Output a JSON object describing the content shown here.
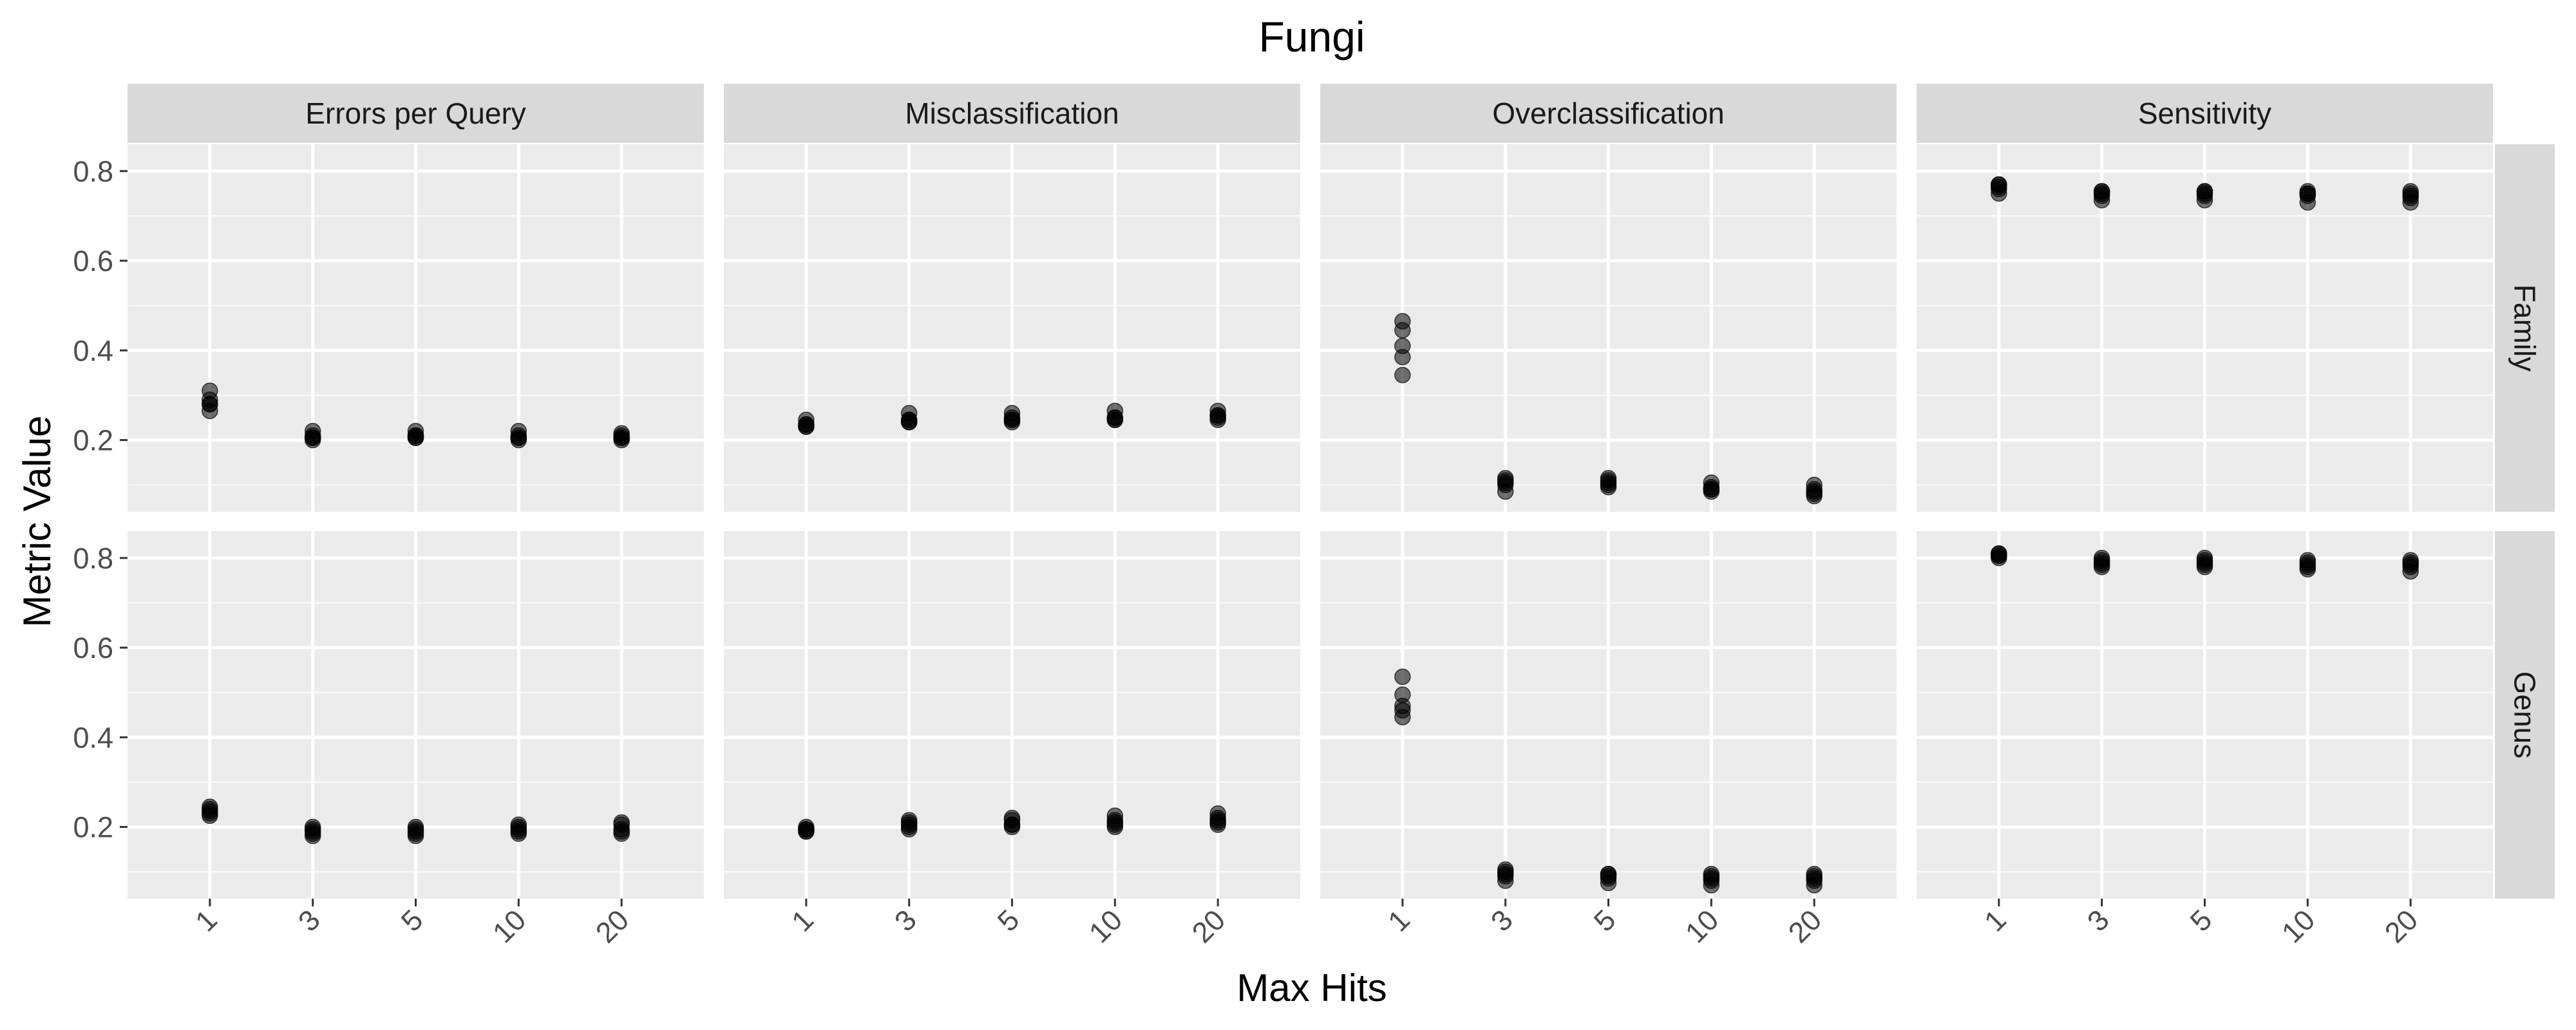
{
  "chart_data": {
    "type": "scatter",
    "title": "Fungi",
    "xlabel": "Max Hits",
    "ylabel": "Metric Value",
    "x_categories": [
      "1",
      "3",
      "5",
      "10",
      "20"
    ],
    "y_ticks": [
      "0.2",
      "0.4",
      "0.6",
      "0.8"
    ],
    "ylim": [
      0.04,
      0.86
    ],
    "facet_columns": [
      "Errors per Query",
      "Misclassification",
      "Overclassification",
      "Sensitivity"
    ],
    "facet_rows": [
      "Family",
      "Genus"
    ],
    "grid": true,
    "point_color": "#000000",
    "point_opacity": 0.55,
    "panel_background": "#ebebeb",
    "strip_background": "#d9d9d9",
    "panels": [
      {
        "column": "Errors per Query",
        "row": "Family",
        "points": [
          [
            0.31,
            0.29,
            0.28,
            0.265,
            0.28
          ],
          [
            0.22,
            0.205,
            0.2,
            0.21,
            0.205
          ],
          [
            0.22,
            0.205,
            0.21,
            0.205,
            0.21
          ],
          [
            0.22,
            0.205,
            0.2,
            0.21,
            0.205
          ],
          [
            0.215,
            0.205,
            0.2,
            0.21,
            0.205
          ]
        ]
      },
      {
        "column": "Misclassification",
        "row": "Family",
        "points": [
          [
            0.245,
            0.235,
            0.23,
            0.235,
            0.23
          ],
          [
            0.26,
            0.245,
            0.24,
            0.245,
            0.24
          ],
          [
            0.26,
            0.245,
            0.24,
            0.25,
            0.245
          ],
          [
            0.265,
            0.25,
            0.245,
            0.25,
            0.245
          ],
          [
            0.265,
            0.255,
            0.245,
            0.25,
            0.255
          ]
        ]
      },
      {
        "column": "Overclassification",
        "row": "Family",
        "points": [
          [
            0.465,
            0.445,
            0.41,
            0.385,
            0.345
          ],
          [
            0.115,
            0.1,
            0.085,
            0.11,
            0.105
          ],
          [
            0.115,
            0.1,
            0.095,
            0.11,
            0.105
          ],
          [
            0.105,
            0.09,
            0.085,
            0.095,
            0.09
          ],
          [
            0.1,
            0.085,
            0.075,
            0.09,
            0.08
          ]
        ]
      },
      {
        "column": "Sensitivity",
        "row": "Family",
        "points": [
          [
            0.77,
            0.76,
            0.75,
            0.765,
            0.77
          ],
          [
            0.755,
            0.745,
            0.735,
            0.75,
            0.755
          ],
          [
            0.755,
            0.745,
            0.735,
            0.75,
            0.755
          ],
          [
            0.755,
            0.745,
            0.73,
            0.75,
            0.75
          ],
          [
            0.755,
            0.74,
            0.73,
            0.745,
            0.75
          ]
        ]
      },
      {
        "column": "Errors per Query",
        "row": "Genus",
        "points": [
          [
            0.245,
            0.235,
            0.225,
            0.23,
            0.24
          ],
          [
            0.2,
            0.19,
            0.18,
            0.185,
            0.195
          ],
          [
            0.2,
            0.19,
            0.18,
            0.185,
            0.195
          ],
          [
            0.205,
            0.195,
            0.185,
            0.19,
            0.2
          ],
          [
            0.21,
            0.195,
            0.185,
            0.19,
            0.205
          ]
        ]
      },
      {
        "column": "Misclassification",
        "row": "Genus",
        "points": [
          [
            0.2,
            0.19,
            0.19,
            0.195,
            0.195
          ],
          [
            0.215,
            0.205,
            0.195,
            0.2,
            0.21
          ],
          [
            0.22,
            0.205,
            0.2,
            0.205,
            0.215
          ],
          [
            0.225,
            0.21,
            0.2,
            0.205,
            0.215
          ],
          [
            0.23,
            0.215,
            0.205,
            0.21,
            0.22
          ]
        ]
      },
      {
        "column": "Overclassification",
        "row": "Genus",
        "points": [
          [
            0.535,
            0.495,
            0.47,
            0.46,
            0.445
          ],
          [
            0.105,
            0.095,
            0.08,
            0.09,
            0.1
          ],
          [
            0.095,
            0.09,
            0.075,
            0.085,
            0.095
          ],
          [
            0.095,
            0.085,
            0.07,
            0.08,
            0.09
          ],
          [
            0.095,
            0.085,
            0.07,
            0.08,
            0.09
          ]
        ]
      },
      {
        "column": "Sensitivity",
        "row": "Genus",
        "points": [
          [
            0.81,
            0.805,
            0.8,
            0.805,
            0.81
          ],
          [
            0.8,
            0.79,
            0.78,
            0.785,
            0.795
          ],
          [
            0.8,
            0.79,
            0.78,
            0.785,
            0.795
          ],
          [
            0.795,
            0.785,
            0.775,
            0.78,
            0.79
          ],
          [
            0.795,
            0.785,
            0.77,
            0.78,
            0.79
          ]
        ]
      }
    ]
  }
}
